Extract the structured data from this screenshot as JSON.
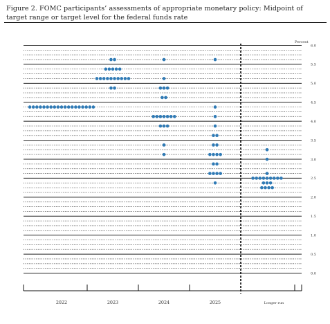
{
  "figure": {
    "title": "Figure 2.  FOMC participants’ assessments of appropriate monetary policy:  Midpoint of target range or target level for the federal funds rate"
  },
  "chart_data": {
    "type": "scatter",
    "subtype": "dot-plot",
    "title": "Figure 2.  FOMC participants’ assessments of appropriate monetary policy:  Midpoint of target range or target level for the federal funds rate",
    "ylabel": "Percent",
    "xlabel": "",
    "ylim": [
      0,
      6
    ],
    "yticks": [
      "0.0",
      "0.5",
      "1.0",
      "1.5",
      "2.0",
      "2.5",
      "3.0",
      "3.5",
      "4.0",
      "4.5",
      "5.0",
      "5.5",
      "6.0"
    ],
    "categories": [
      "2022",
      "2023",
      "2024",
      "2025",
      "Longer run"
    ],
    "grid": "dotted lines at every 0.125, solid lines at every 0.5",
    "separator": "dashed vertical line between 2025 and Longer run",
    "dot_color": "#2f7ab5",
    "series": [
      {
        "category": "2022",
        "points": [
          {
            "y": 4.375,
            "count": 19
          }
        ]
      },
      {
        "category": "2023",
        "points": [
          {
            "y": 5.625,
            "count": 2
          },
          {
            "y": 5.375,
            "count": 5
          },
          {
            "y": 5.125,
            "count": 10
          },
          {
            "y": 4.875,
            "count": 2
          }
        ]
      },
      {
        "category": "2024",
        "points": [
          {
            "y": 5.625,
            "count": 1
          },
          {
            "y": 5.125,
            "count": 1
          },
          {
            "y": 4.875,
            "count": 3
          },
          {
            "y": 4.625,
            "count": 2
          },
          {
            "y": 4.125,
            "count": 7
          },
          {
            "y": 3.875,
            "count": 3
          },
          {
            "y": 3.375,
            "count": 1
          },
          {
            "y": 3.125,
            "count": 1
          }
        ]
      },
      {
        "category": "2025",
        "points": [
          {
            "y": 5.625,
            "count": 1
          },
          {
            "y": 4.375,
            "count": 1
          },
          {
            "y": 4.125,
            "count": 1
          },
          {
            "y": 3.875,
            "count": 1
          },
          {
            "y": 3.625,
            "count": 2
          },
          {
            "y": 3.375,
            "count": 2
          },
          {
            "y": 3.125,
            "count": 4
          },
          {
            "y": 2.875,
            "count": 2
          },
          {
            "y": 2.625,
            "count": 4
          },
          {
            "y": 2.375,
            "count": 1
          }
        ]
      },
      {
        "category": "Longer run",
        "points": [
          {
            "y": 3.25,
            "count": 1
          },
          {
            "y": 3.0,
            "count": 1
          },
          {
            "y": 2.625,
            "count": 1
          },
          {
            "y": 2.5,
            "count": 9
          },
          {
            "y": 2.375,
            "count": 3
          },
          {
            "y": 2.25,
            "count": 4
          }
        ]
      }
    ]
  }
}
